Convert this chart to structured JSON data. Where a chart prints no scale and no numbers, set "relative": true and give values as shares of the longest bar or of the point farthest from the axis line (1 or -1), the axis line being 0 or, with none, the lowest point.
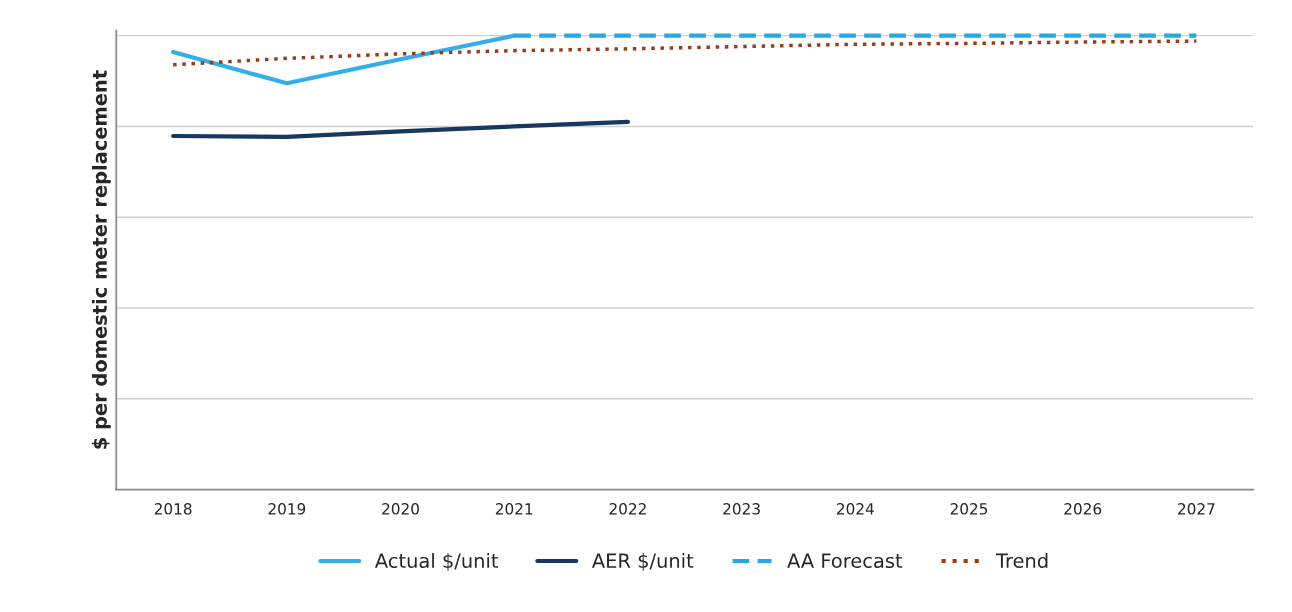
{
  "chart_data": {
    "type": "line",
    "relative": true,
    "ylabel": "$ per domestic meter replacement",
    "categories": [
      "2018",
      "2019",
      "2020",
      "2021",
      "2022",
      "2023",
      "2024",
      "2025",
      "2026",
      "2027"
    ],
    "series": [
      {
        "name": "Actual $/unit",
        "color": "#33aee6",
        "line_style": "solid",
        "values": [
          0.964,
          0.895,
          0.948,
          1.0,
          null,
          null,
          null,
          null,
          null,
          null
        ]
      },
      {
        "name": "AER $/unit",
        "color": "#17375e",
        "line_style": "solid",
        "values": [
          0.779,
          0.777,
          0.789,
          0.8,
          0.81,
          null,
          null,
          null,
          null,
          null
        ]
      },
      {
        "name": "AA Forecast",
        "color": "#29a8e0",
        "line_style": "dashed",
        "values": [
          null,
          null,
          null,
          1.0,
          1.0,
          1.0,
          1.0,
          1.0,
          1.0,
          1.0
        ]
      },
      {
        "name": "Trend",
        "color": "#953e1c",
        "line_style": "dotted",
        "values": [
          0.936,
          0.95,
          0.96,
          0.967,
          0.971,
          0.976,
          0.981,
          0.983,
          0.986,
          0.988
        ]
      }
    ],
    "grid": "y",
    "legend": "bottom",
    "marker": "none"
  }
}
